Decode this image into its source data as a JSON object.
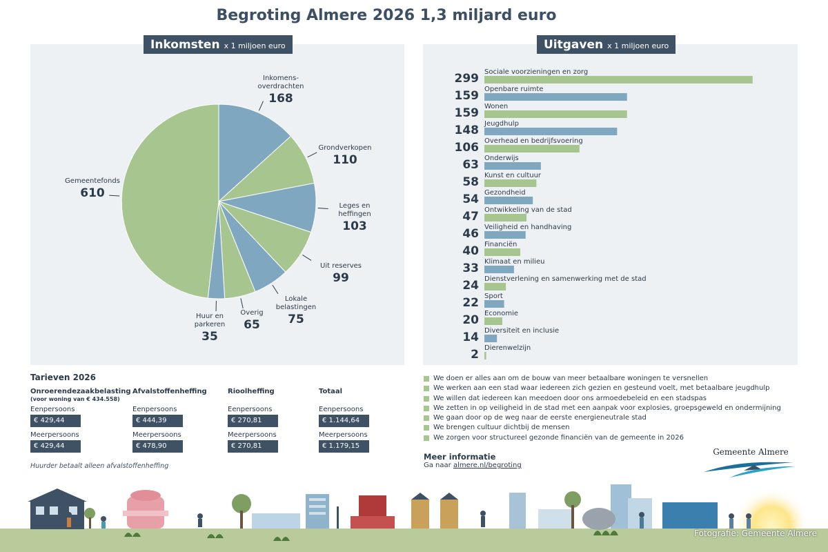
{
  "title": "Begroting Almere 2026 1,3 miljard euro",
  "colors": {
    "green": "#a7c58e",
    "blue": "#7fa8c0",
    "navy": "#3f5164",
    "panel": "#eef1f3"
  },
  "income_header": {
    "title": "Inkomsten",
    "unit": "x 1 miljoen euro"
  },
  "expense_header": {
    "title": "Uitgaven",
    "unit": "x 1 miljoen euro"
  },
  "chart_data": [
    {
      "type": "pie",
      "title": "Inkomsten x 1 miljoen euro",
      "slices": [
        {
          "lines": [
            "Inkomens-",
            "overdrachten"
          ],
          "value": 168,
          "color": "blue"
        },
        {
          "lines": [
            "Grondverkopen"
          ],
          "value": 110,
          "color": "green"
        },
        {
          "lines": [
            "Leges en",
            "heffingen"
          ],
          "value": 103,
          "color": "blue"
        },
        {
          "lines": [
            "Uit reserves"
          ],
          "value": 99,
          "color": "green"
        },
        {
          "lines": [
            "Lokale",
            "belastingen"
          ],
          "value": 75,
          "color": "blue"
        },
        {
          "lines": [
            "Overig"
          ],
          "value": 65,
          "color": "green"
        },
        {
          "lines": [
            "Huur en",
            "parkeren"
          ],
          "value": 35,
          "color": "blue"
        },
        {
          "lines": [
            "Gemeentefonds"
          ],
          "value": 610,
          "color": "green"
        }
      ]
    },
    {
      "type": "bar",
      "orientation": "horizontal",
      "title": "Uitgaven x 1 miljoen euro",
      "categories": [
        "Sociale voorzieningen en zorg",
        "Openbare ruimte",
        "Wonen",
        "Jeugdhulp",
        "Overhead en bedrijfsvoering",
        "Onderwijs",
        "Kunst en cultuur",
        "Gezondheid",
        "Ontwikkeling van de stad",
        "Veiligheid en handhaving",
        "Financiën",
        "Klimaat en milieu",
        "Dienstverlening en samenwerking met de stad",
        "Sport",
        "Economie",
        "Diversiteit en inclusie",
        "Dierenwelzijn"
      ],
      "values": [
        299,
        159,
        159,
        148,
        106,
        63,
        58,
        54,
        47,
        46,
        40,
        33,
        24,
        22,
        20,
        14,
        2
      ],
      "colors": [
        "green",
        "blue",
        "green",
        "blue",
        "green",
        "blue",
        "green",
        "blue",
        "green",
        "blue",
        "green",
        "blue",
        "green",
        "blue",
        "green",
        "blue",
        "green"
      ]
    }
  ],
  "tarieven": {
    "title": "Tarieven 2026",
    "columns": [
      {
        "head": "Onroerendezaakbelasting",
        "sub": "(voor woning van € 434.558)",
        "l1": "Eenpersoons",
        "v1": "€ 429,44",
        "l2": "Meerpersoons",
        "v2": "€ 429,44"
      },
      {
        "head": "Afvalstoffenheffing",
        "sub": "",
        "l1": "Eenpersoons",
        "v1": "€ 444,39",
        "l2": "Meerpersoons",
        "v2": "€ 478,90"
      },
      {
        "head": "Rioolheffing",
        "sub": "",
        "l1": "Eenpersoons",
        "v1": "€  270,81",
        "l2": "Meerpersoons",
        "v2": "€  270,81"
      },
      {
        "head": "Totaal",
        "sub": "",
        "l1": "Eenpersoons",
        "v1": "€ 1.144,64",
        "l2": "Meerpersoons",
        "v2": "€ 1.179,15"
      }
    ],
    "note": "Huurder betaalt alleen afvalstoffenheffing"
  },
  "bullets": [
    "We doen er alles aan om de bouw van meer betaalbare woningen te versnellen",
    "We werken aan een stad waar iedereen zich gezien en gesteund voelt, met betaalbare jeugdhulp",
    "We willen dat iedereen kan meedoen door ons armoedebeleid en een stadspas",
    "We zetten in op veiligheid in de stad met een aanpak voor explosies, groepsgeweld en ondermijning",
    "We gaan door op de weg naar de eerste energieneutrale stad",
    "We brengen cultuur dichtbij de mensen",
    "We zorgen voor structureel gezonde financiën van de gemeente in 2026"
  ],
  "meer": {
    "title": "Meer informatie",
    "prefix": "Ga naar ",
    "link": "almere.nl/begroting"
  },
  "logo_text": "Gemeente Almere",
  "credit": "Fotografie: Gemeente Almere"
}
